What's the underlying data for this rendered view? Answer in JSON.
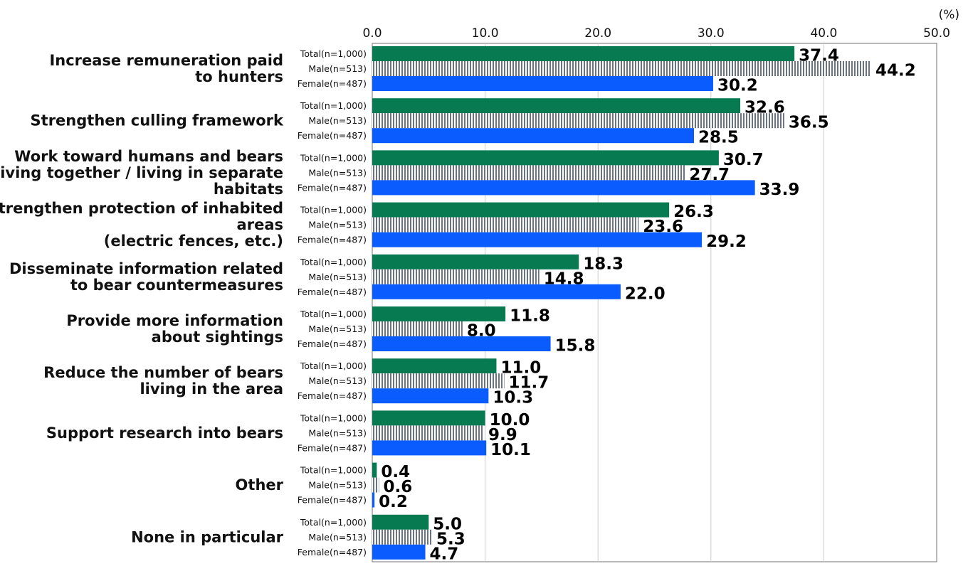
{
  "chart_data": {
    "type": "bar",
    "orientation": "horizontal",
    "unit_label": "(%)",
    "xlim": [
      0,
      50
    ],
    "xticks": [
      "0.0",
      "10.0",
      "20.0",
      "30.0",
      "40.0",
      "50.0"
    ],
    "grid": true,
    "categories": [
      [
        "Increase remuneration paid",
        "to hunters"
      ],
      [
        "Strengthen culling framework"
      ],
      [
        "Work toward humans and bears",
        "living together / living in separate",
        "habitats"
      ],
      [
        "Strengthen protection of inhabited",
        "areas",
        "(electric fences, etc.)"
      ],
      [
        "Disseminate information related",
        "to bear countermeasures"
      ],
      [
        "Provide more information",
        "about sightings"
      ],
      [
        "Reduce the number of bears",
        "living in the area"
      ],
      [
        "Support research into bears"
      ],
      [
        "Other"
      ],
      [
        "None in particular"
      ]
    ],
    "series": [
      {
        "name": "Total(n=1,000)",
        "color": "#077a52",
        "pattern": "solid",
        "values": [
          37.4,
          32.6,
          30.7,
          26.3,
          18.3,
          11.8,
          11.0,
          10.0,
          0.4,
          5.0
        ]
      },
      {
        "name": "Male(n=513)",
        "color": "#6b7280",
        "pattern": "vertical-stripes",
        "values": [
          44.2,
          36.5,
          27.7,
          23.6,
          14.8,
          8.0,
          11.7,
          9.9,
          0.6,
          5.3
        ]
      },
      {
        "name": "Female(n=487)",
        "color": "#0a5cff",
        "pattern": "solid",
        "values": [
          30.2,
          28.5,
          33.9,
          29.2,
          22.0,
          15.8,
          10.3,
          10.1,
          0.2,
          4.7
        ]
      }
    ]
  }
}
